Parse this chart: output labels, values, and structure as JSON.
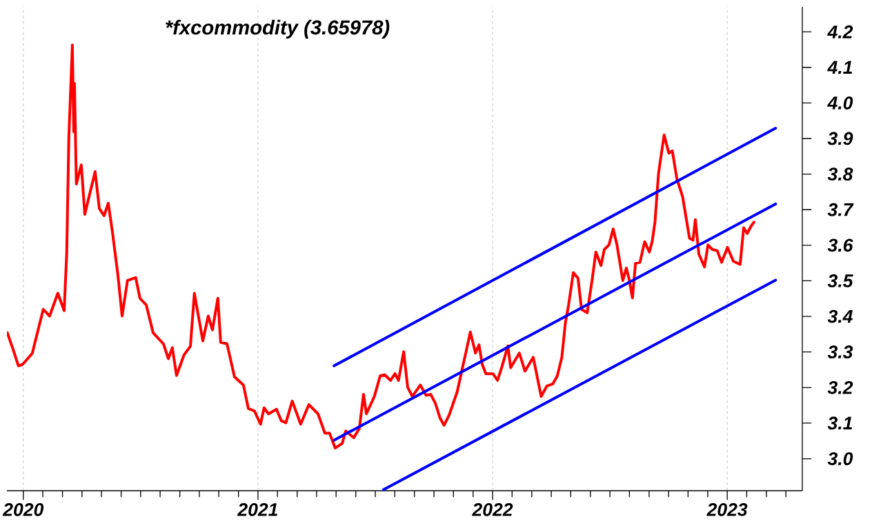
{
  "chart_data": {
    "type": "line",
    "title": "*fxcommodity (3.65978)",
    "xlim": [
      2019.93,
      2023.32
    ],
    "ylim": [
      2.91,
      4.27
    ],
    "xticks": [
      {
        "value": 2020,
        "label": "2020"
      },
      {
        "value": 2020.083,
        "label": null
      },
      {
        "value": 2020.167,
        "label": null
      },
      {
        "value": 2020.25,
        "label": null
      },
      {
        "value": 2020.333,
        "label": null
      },
      {
        "value": 2020.417,
        "label": null
      },
      {
        "value": 2020.5,
        "label": null
      },
      {
        "value": 2020.583,
        "label": null
      },
      {
        "value": 2020.667,
        "label": null
      },
      {
        "value": 2020.75,
        "label": null
      },
      {
        "value": 2020.833,
        "label": null
      },
      {
        "value": 2020.917,
        "label": null
      },
      {
        "value": 2021,
        "label": "2021"
      },
      {
        "value": 2021.083,
        "label": null
      },
      {
        "value": 2021.167,
        "label": null
      },
      {
        "value": 2021.25,
        "label": null
      },
      {
        "value": 2021.333,
        "label": null
      },
      {
        "value": 2021.417,
        "label": null
      },
      {
        "value": 2021.5,
        "label": null
      },
      {
        "value": 2021.583,
        "label": null
      },
      {
        "value": 2021.667,
        "label": null
      },
      {
        "value": 2021.75,
        "label": null
      },
      {
        "value": 2021.833,
        "label": null
      },
      {
        "value": 2021.917,
        "label": null
      },
      {
        "value": 2022,
        "label": "2022"
      },
      {
        "value": 2022.083,
        "label": null
      },
      {
        "value": 2022.167,
        "label": null
      },
      {
        "value": 2022.25,
        "label": null
      },
      {
        "value": 2022.333,
        "label": null
      },
      {
        "value": 2022.417,
        "label": null
      },
      {
        "value": 2022.5,
        "label": null
      },
      {
        "value": 2022.583,
        "label": null
      },
      {
        "value": 2022.667,
        "label": null
      },
      {
        "value": 2022.75,
        "label": null
      },
      {
        "value": 2022.833,
        "label": null
      },
      {
        "value": 2022.917,
        "label": null
      },
      {
        "value": 2023,
        "label": "2023"
      },
      {
        "value": 2023.083,
        "label": null
      },
      {
        "value": 2023.167,
        "label": null
      },
      {
        "value": 2023.25,
        "label": null
      }
    ],
    "yticks": [
      {
        "value": 3.0,
        "label": "3.0"
      },
      3.1,
      3.2,
      3.3,
      3.4,
      3.5,
      3.6,
      3.7,
      3.8,
      3.9,
      {
        "value": 4.0,
        "label": "4.0"
      },
      4.1,
      4.2
    ],
    "grid": "x",
    "marker": "none",
    "line_style": "solid",
    "series": [
      {
        "color": "#ff0000",
        "x": [
          2019.932,
          2019.956,
          2019.979,
          2019.997,
          2020.038,
          2020.085,
          2020.112,
          2020.147,
          2020.174,
          2020.185,
          2020.194,
          2020.209,
          2020.215,
          2020.218,
          2020.226,
          2020.247,
          2020.262,
          2020.306,
          2020.324,
          2020.344,
          2020.362,
          2020.379,
          2020.403,
          2020.421,
          2020.444,
          2020.479,
          2020.497,
          2020.524,
          2020.553,
          2020.597,
          2020.618,
          2020.635,
          2020.653,
          2020.685,
          2020.712,
          2020.729,
          2020.765,
          2020.788,
          2020.806,
          2020.829,
          2020.841,
          2020.868,
          2020.9,
          2020.938,
          2020.959,
          2020.985,
          2021.011,
          2021.026,
          2021.045,
          2021.079,
          2021.099,
          2021.119,
          2021.146,
          2021.182,
          2021.217,
          2021.256,
          2021.285,
          2021.305,
          2021.329,
          2021.359,
          2021.374,
          2021.408,
          2021.432,
          2021.45,
          2021.462,
          2021.496,
          2021.521,
          2021.54,
          2021.565,
          2021.584,
          2021.599,
          2021.621,
          2021.638,
          2021.658,
          2021.692,
          2021.717,
          2021.736,
          2021.756,
          2021.776,
          2021.793,
          2021.815,
          2021.849,
          2021.864,
          2021.888,
          2021.905,
          2021.927,
          2021.942,
          2021.956,
          2021.971,
          2022.001,
          2022.021,
          2022.04,
          2022.065,
          2022.077,
          2022.114,
          2022.138,
          2022.173,
          2022.207,
          2022.231,
          2022.256,
          2022.276,
          2022.295,
          2022.31,
          2022.324,
          2022.344,
          2022.364,
          2022.379,
          2022.403,
          2022.423,
          2022.44,
          2022.462,
          2022.476,
          2022.496,
          2022.514,
          2022.53,
          2022.555,
          2022.57,
          2022.582,
          2022.596,
          2022.609,
          2022.628,
          2022.648,
          2022.668,
          2022.68,
          2022.692,
          2022.707,
          2022.731,
          2022.751,
          2022.766,
          2022.785,
          2022.81,
          2022.839,
          2022.854,
          2022.864,
          2022.879,
          2022.903,
          2022.918,
          2022.937,
          2022.957,
          2022.976,
          2023.001,
          2023.026,
          2023.055,
          2023.07,
          2023.085,
          2023.1,
          2023.114
        ],
        "values": [
          3.354,
          3.308,
          3.261,
          3.265,
          3.296,
          3.42,
          3.401,
          3.465,
          3.416,
          3.579,
          3.904,
          4.163,
          3.919,
          4.055,
          3.772,
          3.826,
          3.687,
          3.807,
          3.703,
          3.683,
          3.718,
          3.641,
          3.517,
          3.401,
          3.501,
          3.509,
          3.451,
          3.432,
          3.354,
          3.323,
          3.281,
          3.312,
          3.234,
          3.292,
          3.316,
          3.465,
          3.331,
          3.401,
          3.362,
          3.451,
          3.327,
          3.323,
          3.23,
          3.207,
          3.141,
          3.134,
          3.097,
          3.143,
          3.126,
          3.139,
          3.107,
          3.101,
          3.162,
          3.097,
          3.152,
          3.126,
          3.072,
          3.072,
          3.03,
          3.043,
          3.078,
          3.059,
          3.085,
          3.181,
          3.126,
          3.175,
          3.233,
          3.236,
          3.22,
          3.239,
          3.22,
          3.301,
          3.201,
          3.175,
          3.207,
          3.178,
          3.181,
          3.156,
          3.114,
          3.094,
          3.123,
          3.188,
          3.233,
          3.304,
          3.356,
          3.297,
          3.32,
          3.265,
          3.239,
          3.239,
          3.22,
          3.259,
          3.317,
          3.256,
          3.297,
          3.246,
          3.285,
          3.175,
          3.204,
          3.21,
          3.233,
          3.285,
          3.381,
          3.433,
          3.523,
          3.507,
          3.42,
          3.41,
          3.497,
          3.581,
          3.543,
          3.588,
          3.601,
          3.646,
          3.601,
          3.501,
          3.536,
          3.504,
          3.452,
          3.549,
          3.552,
          3.61,
          3.581,
          3.61,
          3.665,
          3.801,
          3.91,
          3.859,
          3.865,
          3.788,
          3.736,
          3.62,
          3.614,
          3.672,
          3.575,
          3.539,
          3.601,
          3.588,
          3.585,
          3.552,
          3.594,
          3.555,
          3.546,
          3.649,
          3.633,
          3.652,
          3.665
        ]
      },
      {
        "color": "#0000ff",
        "x": [
          2021.324,
          2023.206
        ],
        "values": [
          3.261,
          3.929
        ]
      },
      {
        "color": "#0000ff",
        "x": [
          2021.324,
          2023.206
        ],
        "values": [
          3.052,
          3.716
        ]
      },
      {
        "color": "#0000ff",
        "x": [
          2021.535,
          2023.206
        ],
        "values": [
          2.913,
          3.502
        ]
      }
    ]
  }
}
